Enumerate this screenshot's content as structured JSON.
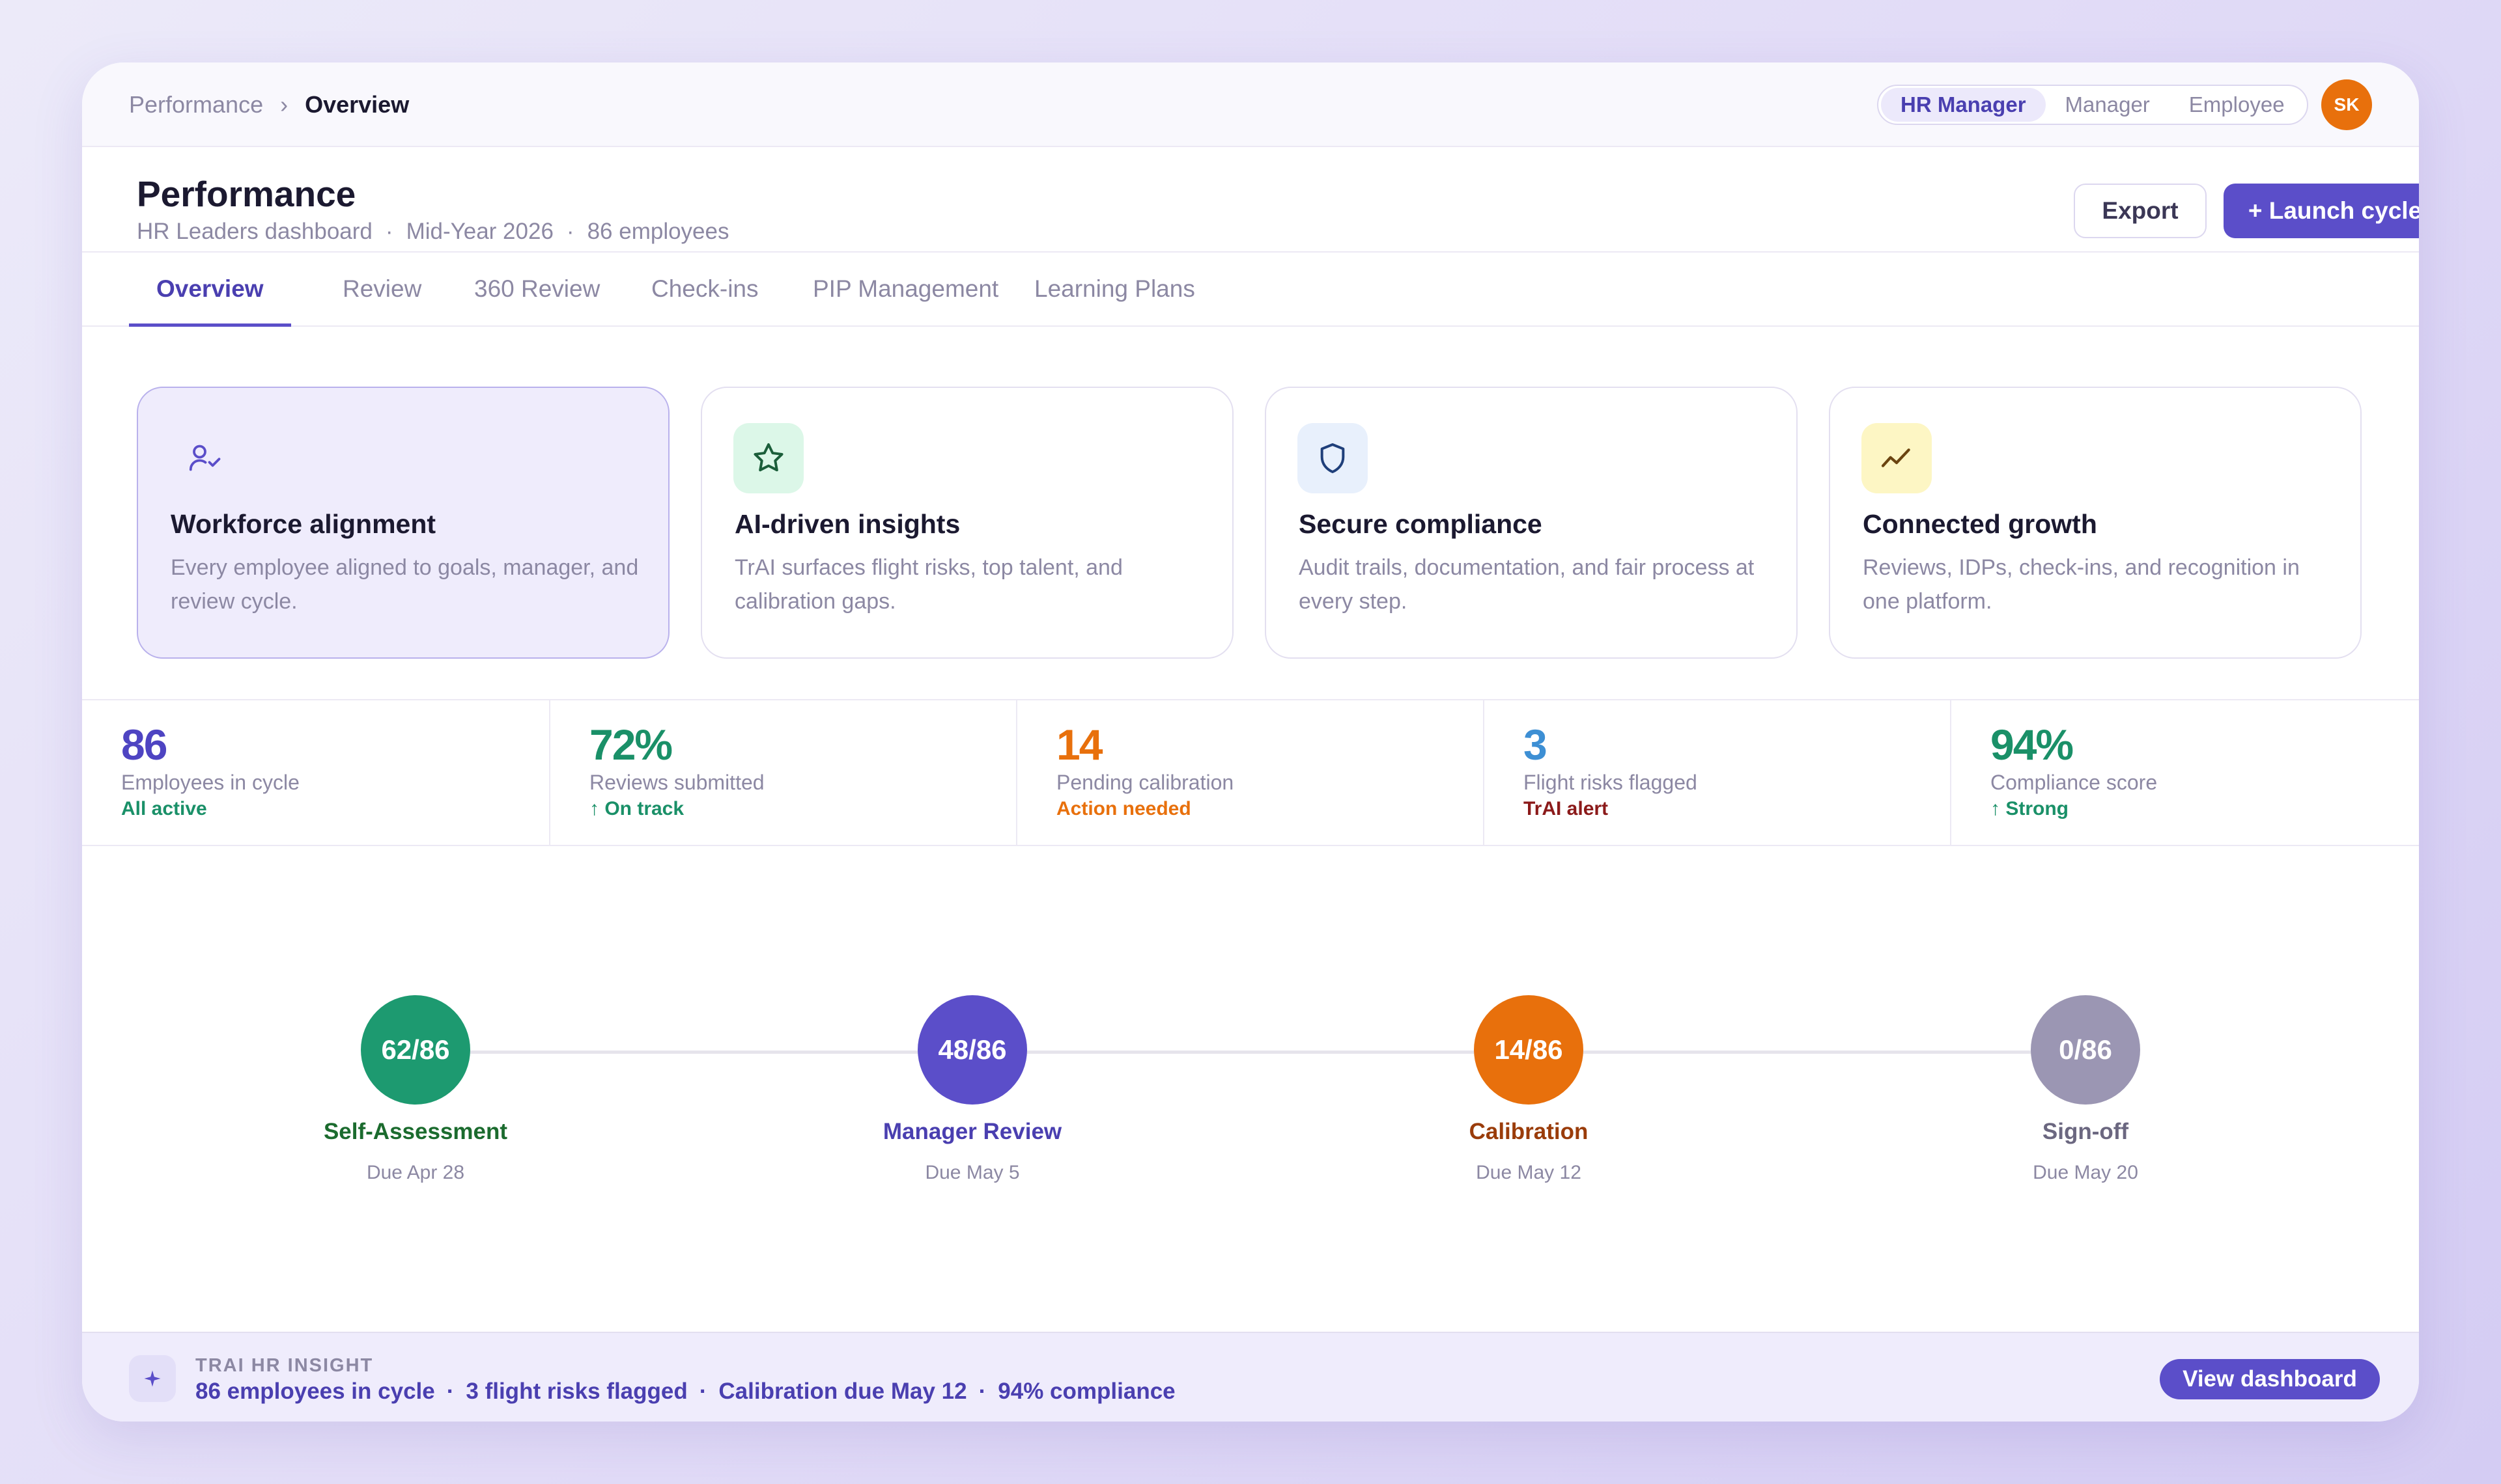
{
  "breadcrumb": {
    "parent": "Performance",
    "separator": "›",
    "current": "Overview"
  },
  "roles": {
    "options": [
      "HR Manager",
      "Manager",
      "Employee"
    ],
    "selected": "HR Manager"
  },
  "user": {
    "initials": "SK",
    "avatar_color": "#e8700c"
  },
  "header": {
    "title": "Performance",
    "subtitle_parts": [
      "HR Leaders dashboard",
      "Mid-Year 2026",
      "86 employees"
    ],
    "separator": "·",
    "export_label": "Export",
    "launch_label": "+ Launch cycle"
  },
  "tabs": [
    {
      "label": "Overview",
      "active": true
    },
    {
      "label": "Review",
      "active": false
    },
    {
      "label": "360 Review",
      "active": false
    },
    {
      "label": "Check-ins",
      "active": false
    },
    {
      "label": "PIP Management",
      "active": false
    },
    {
      "label": "Learning Plans",
      "active": false
    }
  ],
  "features": [
    {
      "icon": "user-check-icon",
      "title": "Workforce alignment",
      "description": "Every employee aligned to goals, manager, and review cycle.",
      "highlighted": true
    },
    {
      "icon": "star-icon",
      "title": "AI-driven insights",
      "description": "TrAI surfaces flight risks, top talent, and calibration gaps.",
      "highlighted": false
    },
    {
      "icon": "shield-icon",
      "title": "Secure compliance",
      "description": "Audit trails, documentation, and fair process at every step.",
      "highlighted": false
    },
    {
      "icon": "trend-line-icon",
      "title": "Connected growth",
      "description": "Reviews, IDPs, check-ins, and recognition in one platform.",
      "highlighted": false
    }
  ],
  "stats": [
    {
      "value": "86",
      "label": "Employees in cycle",
      "note": "All active",
      "value_color": "#4e44c2",
      "note_color": "#1a9068"
    },
    {
      "value": "72%",
      "label": "Reviews submitted",
      "note": "↑ On track",
      "value_color": "#1a9068",
      "note_color": "#1a9068"
    },
    {
      "value": "14",
      "label": "Pending calibration",
      "note": "Action needed",
      "value_color": "#e8700c",
      "note_color": "#e8700c"
    },
    {
      "value": "3",
      "label": "Flight risks flagged",
      "note": "TrAI alert",
      "value_color": "#3d8fd4",
      "note_color": "#8b1a1a"
    },
    {
      "value": "94%",
      "label": "Compliance score",
      "note": "↑ Strong",
      "value_color": "#1a9068",
      "note_color": "#1a9068"
    }
  ],
  "stages": [
    {
      "count": "62/86",
      "name": "Self-Assessment",
      "due": "Due Apr 28",
      "circle_color": "#1d9a70",
      "name_color": "#1b6b2e"
    },
    {
      "count": "48/86",
      "name": "Manager Review",
      "due": "Due May 5",
      "circle_color": "#5b4ec9",
      "name_color": "#4a3fb0"
    },
    {
      "count": "14/86",
      "name": "Calibration",
      "due": "Due May 12",
      "circle_color": "#e8700c",
      "name_color": "#9a3c0a"
    },
    {
      "count": "0/86",
      "name": "Sign-off",
      "due": "Due May 20",
      "circle_color": "#9b96b3",
      "name_color": "#6b6780"
    }
  ],
  "insight": {
    "icon": "sparkle-icon",
    "label": "TRAI HR INSIGHT",
    "parts": [
      "86 employees in cycle",
      "3 flight risks flagged",
      "Calibration due May 12",
      "94% compliance"
    ],
    "button_label": "View dashboard"
  }
}
